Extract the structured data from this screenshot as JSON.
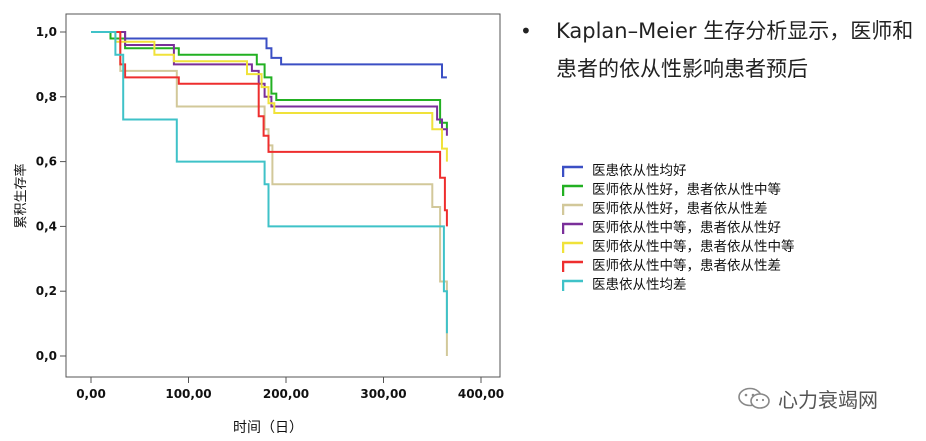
{
  "bullet": {
    "text": "Kaplan–Meier 生存分析显示，医师和患者的依从性影响患者预后"
  },
  "watermark": {
    "text": "心力衰竭网",
    "icon": "wechat-icon"
  },
  "chart_data": {
    "type": "line",
    "step": true,
    "xlabel": "时间（日）",
    "ylabel": "累积生存率",
    "xlim": [
      0,
      400
    ],
    "ylim": [
      0,
      1
    ],
    "xticks": [
      "0,00",
      "100,00",
      "200,00",
      "300,00",
      "400,00"
    ],
    "yticks": [
      "0,0",
      "0,2",
      "0,4",
      "0,6",
      "0,8",
      "1,0"
    ],
    "grid": false,
    "legend_position": "right",
    "series": [
      {
        "name": "医患依从性均好",
        "color": "#3b4fc4",
        "points": [
          [
            0,
            1.0
          ],
          [
            35,
            1.0
          ],
          [
            35,
            0.98
          ],
          [
            180,
            0.98
          ],
          [
            180,
            0.95
          ],
          [
            185,
            0.95
          ],
          [
            185,
            0.92
          ],
          [
            195,
            0.92
          ],
          [
            195,
            0.9
          ],
          [
            360,
            0.9
          ],
          [
            360,
            0.86
          ],
          [
            365,
            0.86
          ]
        ]
      },
      {
        "name": "医师依从性好，患者依从性中等",
        "color": "#22b022",
        "points": [
          [
            0,
            1.0
          ],
          [
            20,
            1.0
          ],
          [
            20,
            0.98
          ],
          [
            35,
            0.98
          ],
          [
            35,
            0.95
          ],
          [
            90,
            0.95
          ],
          [
            90,
            0.93
          ],
          [
            170,
            0.93
          ],
          [
            170,
            0.9
          ],
          [
            178,
            0.9
          ],
          [
            178,
            0.86
          ],
          [
            185,
            0.86
          ],
          [
            185,
            0.81
          ],
          [
            190,
            0.81
          ],
          [
            190,
            0.79
          ],
          [
            358,
            0.79
          ],
          [
            358,
            0.72
          ],
          [
            365,
            0.72
          ],
          [
            365,
            0.7
          ]
        ]
      },
      {
        "name": "医师依从性好，患者依从性差",
        "color": "#d2c89a",
        "points": [
          [
            0,
            1.0
          ],
          [
            30,
            1.0
          ],
          [
            30,
            0.88
          ],
          [
            88,
            0.88
          ],
          [
            88,
            0.77
          ],
          [
            178,
            0.77
          ],
          [
            178,
            0.7
          ],
          [
            182,
            0.7
          ],
          [
            182,
            0.65
          ],
          [
            186,
            0.65
          ],
          [
            186,
            0.53
          ],
          [
            350,
            0.53
          ],
          [
            350,
            0.46
          ],
          [
            358,
            0.46
          ],
          [
            358,
            0.23
          ],
          [
            365,
            0.23
          ],
          [
            365,
            0.0
          ]
        ]
      },
      {
        "name": "医师依从性中等，患者依从性好",
        "color": "#7a2f9a",
        "points": [
          [
            0,
            1.0
          ],
          [
            35,
            1.0
          ],
          [
            35,
            0.96
          ],
          [
            85,
            0.96
          ],
          [
            85,
            0.9
          ],
          [
            165,
            0.9
          ],
          [
            165,
            0.88
          ],
          [
            172,
            0.88
          ],
          [
            172,
            0.84
          ],
          [
            178,
            0.84
          ],
          [
            178,
            0.8
          ],
          [
            185,
            0.8
          ],
          [
            185,
            0.77
          ],
          [
            355,
            0.77
          ],
          [
            355,
            0.73
          ],
          [
            360,
            0.73
          ],
          [
            360,
            0.7
          ],
          [
            365,
            0.7
          ],
          [
            365,
            0.68
          ]
        ]
      },
      {
        "name": "医师依从性中等，患者依从性中等",
        "color": "#f0e23a",
        "points": [
          [
            0,
            1.0
          ],
          [
            25,
            1.0
          ],
          [
            25,
            0.97
          ],
          [
            65,
            0.97
          ],
          [
            65,
            0.93
          ],
          [
            85,
            0.93
          ],
          [
            85,
            0.91
          ],
          [
            160,
            0.91
          ],
          [
            160,
            0.87
          ],
          [
            175,
            0.87
          ],
          [
            175,
            0.83
          ],
          [
            182,
            0.83
          ],
          [
            182,
            0.78
          ],
          [
            188,
            0.78
          ],
          [
            188,
            0.75
          ],
          [
            350,
            0.75
          ],
          [
            350,
            0.7
          ],
          [
            360,
            0.7
          ],
          [
            360,
            0.64
          ],
          [
            365,
            0.64
          ],
          [
            365,
            0.6
          ]
        ]
      },
      {
        "name": "医师依从性中等，患者依从性差",
        "color": "#ee2e2e",
        "points": [
          [
            0,
            1.0
          ],
          [
            30,
            1.0
          ],
          [
            30,
            0.9
          ],
          [
            35,
            0.9
          ],
          [
            35,
            0.86
          ],
          [
            90,
            0.86
          ],
          [
            90,
            0.84
          ],
          [
            172,
            0.84
          ],
          [
            172,
            0.74
          ],
          [
            177,
            0.74
          ],
          [
            177,
            0.68
          ],
          [
            182,
            0.68
          ],
          [
            182,
            0.63
          ],
          [
            358,
            0.63
          ],
          [
            358,
            0.55
          ],
          [
            363,
            0.55
          ],
          [
            363,
            0.45
          ],
          [
            365,
            0.45
          ],
          [
            365,
            0.4
          ]
        ]
      },
      {
        "name": "医患依从性均差",
        "color": "#3fc2c8",
        "points": [
          [
            0,
            1.0
          ],
          [
            25,
            1.0
          ],
          [
            25,
            0.93
          ],
          [
            33,
            0.93
          ],
          [
            33,
            0.73
          ],
          [
            88,
            0.73
          ],
          [
            88,
            0.6
          ],
          [
            178,
            0.6
          ],
          [
            178,
            0.53
          ],
          [
            182,
            0.53
          ],
          [
            182,
            0.4
          ],
          [
            362,
            0.4
          ],
          [
            362,
            0.2
          ],
          [
            365,
            0.2
          ],
          [
            365,
            0.07
          ]
        ]
      }
    ]
  }
}
